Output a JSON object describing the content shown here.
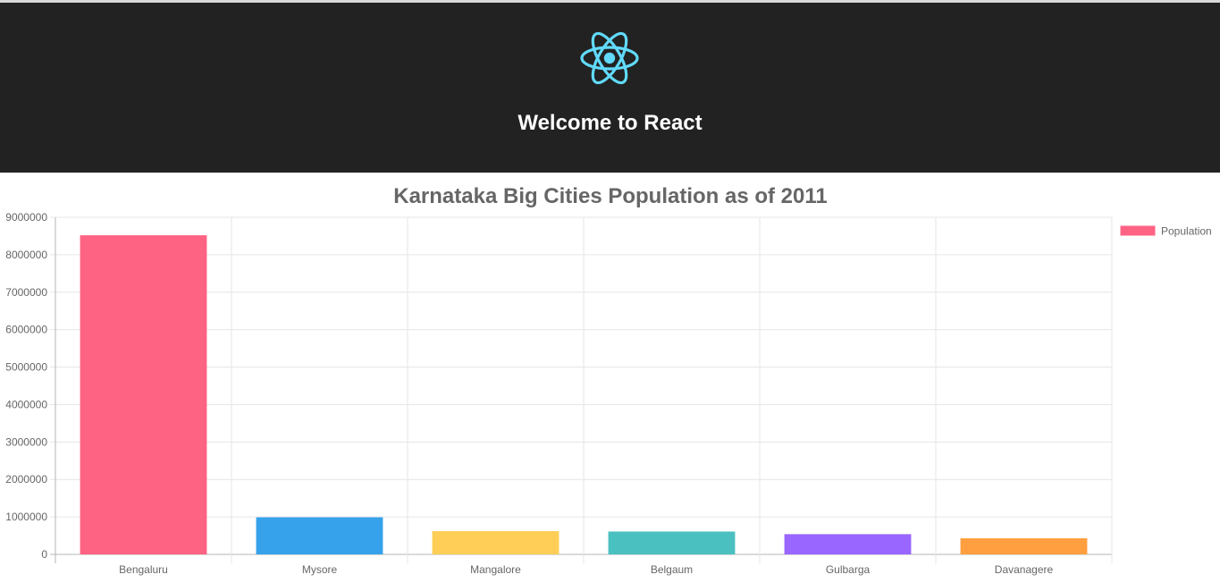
{
  "header": {
    "logo_icon": "react-atom-icon",
    "logo_color": "#61dafb",
    "background": "#222222",
    "title": "Welcome to React"
  },
  "chart_data": {
    "type": "bar",
    "title": "Karnataka Big Cities Population as of 2011",
    "categories": [
      "Bengaluru",
      "Mysore",
      "Mangalore",
      "Belgaum",
      "Gulbarga",
      "Davanagere"
    ],
    "series": [
      {
        "name": "Population",
        "values": [
          8520000,
          990000,
          620000,
          610000,
          540000,
          430000
        ],
        "colors": [
          "#ff6384",
          "#36a2eb",
          "#ffce56",
          "#4bc0c0",
          "#9966ff",
          "#ff9f40"
        ]
      }
    ],
    "ylim": [
      0,
      9000000
    ],
    "yticks": [
      0,
      1000000,
      2000000,
      3000000,
      4000000,
      5000000,
      6000000,
      7000000,
      8000000,
      9000000
    ],
    "ytick_labels": [
      "0",
      "1000000",
      "2000000",
      "3000000",
      "4000000",
      "5000000",
      "6000000",
      "7000000",
      "8000000",
      "9000000"
    ],
    "grid": true,
    "legend_position": "right",
    "xlabel": "",
    "ylabel": ""
  }
}
